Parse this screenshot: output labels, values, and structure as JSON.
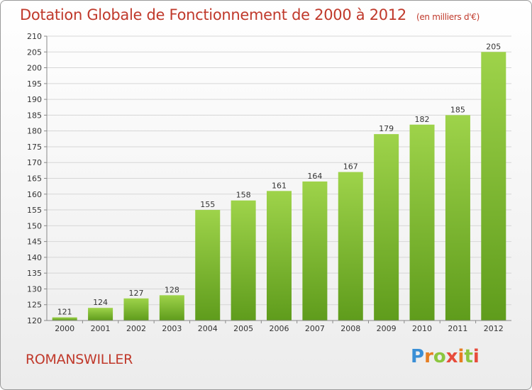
{
  "chart_data": {
    "type": "bar",
    "title": "Dotation Globale de Fonctionnement de 2000 à 2012",
    "subtitle": "(en milliers d'€)",
    "categories": [
      "2000",
      "2001",
      "2002",
      "2003",
      "2004",
      "2005",
      "2006",
      "2007",
      "2008",
      "2009",
      "2010",
      "2011",
      "2012"
    ],
    "values": [
      121,
      124,
      127,
      128,
      155,
      158,
      161,
      164,
      167,
      179,
      182,
      185,
      205
    ],
    "ylim": [
      120,
      210
    ],
    "yticks": [
      120,
      125,
      130,
      135,
      140,
      145,
      150,
      155,
      160,
      165,
      170,
      175,
      180,
      185,
      190,
      195,
      200,
      205,
      210
    ],
    "grid": true,
    "bar_color_top": "#9ed34a",
    "bar_color_bottom": "#5f9c1c"
  },
  "place_name": "ROMANSWILLER",
  "logo": {
    "text": "Proxiti"
  }
}
